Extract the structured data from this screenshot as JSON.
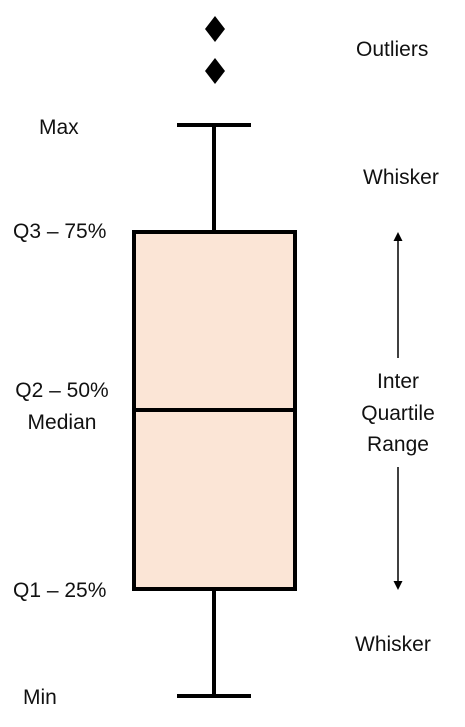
{
  "labels": {
    "max": "Max",
    "q3": "Q3 – 75%",
    "q2_line1": "Q2 – 50%",
    "q2_line2": "Median",
    "q1": "Q1 – 25%",
    "min": "Min",
    "outliers": "Outliers",
    "whisker_top": "Whisker",
    "iqr_line1": "Inter",
    "iqr_line2": "Quartile",
    "iqr_line3": "Range",
    "whisker_bottom": "Whisker"
  },
  "colors": {
    "box_fill": "#fbe5d6",
    "stroke": "#000000"
  },
  "icons": {
    "outlier_marker": "diamond-icon",
    "range_arrow": "double-arrow-icon"
  },
  "outlier_count": 2
}
